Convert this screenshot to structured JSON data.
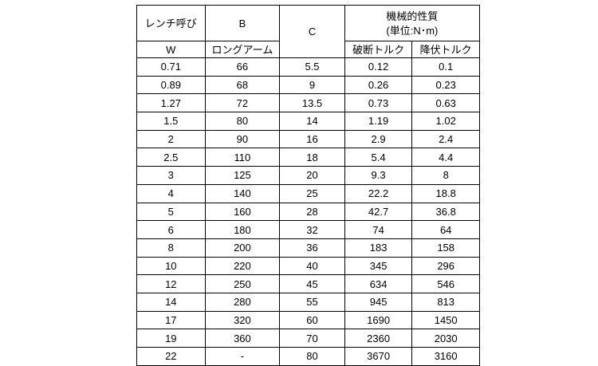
{
  "table": {
    "headers": {
      "wrench": "レンチ呼び",
      "w": "W",
      "b": "B",
      "long_arm": "ロングアーム",
      "c": "C",
      "mech": "機械的性質",
      "unit": "(単位:N･m)",
      "break": "破断トルク",
      "yield": "降伏トルク"
    },
    "rows": [
      [
        "0.71",
        "66",
        "5.5",
        "0.12",
        "0.1"
      ],
      [
        "0.89",
        "68",
        "9",
        "0.26",
        "0.23"
      ],
      [
        "1.27",
        "72",
        "13.5",
        "0.73",
        "0.63"
      ],
      [
        "1.5",
        "80",
        "14",
        "1.19",
        "1.02"
      ],
      [
        "2",
        "90",
        "16",
        "2.9",
        "2.4"
      ],
      [
        "2.5",
        "110",
        "18",
        "5.4",
        "4.4"
      ],
      [
        "3",
        "125",
        "20",
        "9.3",
        "8"
      ],
      [
        "4",
        "140",
        "25",
        "22.2",
        "18.8"
      ],
      [
        "5",
        "160",
        "28",
        "42.7",
        "36.8"
      ],
      [
        "6",
        "180",
        "32",
        "74",
        "64"
      ],
      [
        "8",
        "200",
        "36",
        "183",
        "158"
      ],
      [
        "10",
        "220",
        "40",
        "345",
        "296"
      ],
      [
        "12",
        "250",
        "45",
        "634",
        "546"
      ],
      [
        "14",
        "280",
        "55",
        "945",
        "813"
      ],
      [
        "17",
        "320",
        "60",
        "1690",
        "1450"
      ],
      [
        "19",
        "360",
        "70",
        "2360",
        "2030"
      ],
      [
        "22",
        "-",
        "80",
        "3670",
        "3160"
      ]
    ]
  }
}
